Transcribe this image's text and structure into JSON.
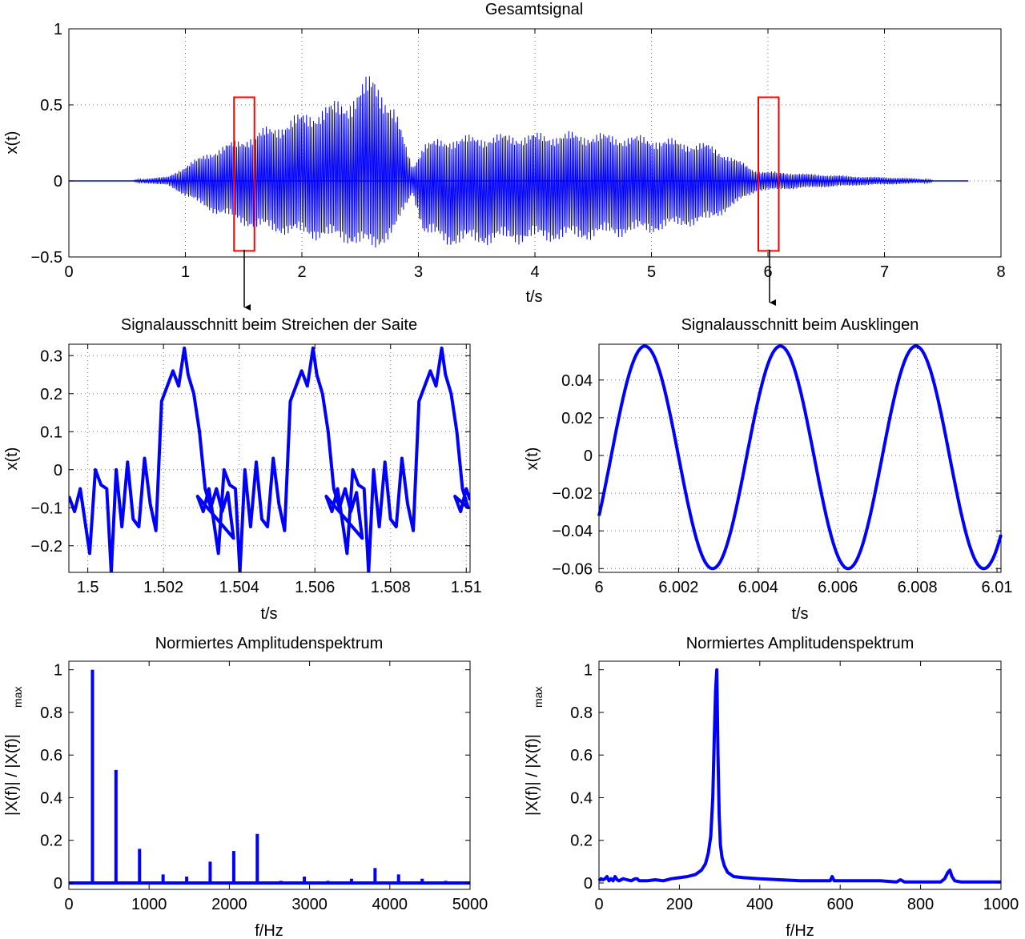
{
  "colors": {
    "signal": "#0000ff",
    "highlight": "#ff0000",
    "axes": "#000000",
    "background": "#ffffff"
  },
  "chart_data": [
    {
      "id": "overall",
      "type": "line",
      "title": "Gesamtsignal",
      "xlabel": "t/s",
      "ylabel": "x(t)",
      "xlim": [
        0,
        8
      ],
      "ylim": [
        -0.5,
        1
      ],
      "xticks": [
        "0",
        "1",
        "2",
        "3",
        "4",
        "5",
        "6",
        "7",
        "8"
      ],
      "yticks": [
        "1",
        "0.5",
        "0",
        "−0.5"
      ],
      "grid": true,
      "envelope": {
        "t": [
          0.0,
          0.55,
          0.58,
          0.85,
          1.2,
          1.6,
          2.0,
          2.4,
          2.62,
          2.8,
          2.95,
          3.05,
          3.3,
          3.8,
          4.4,
          5.0,
          5.5,
          5.9,
          6.3,
          6.8,
          7.2,
          7.4,
          7.42,
          7.72
        ],
        "upper": [
          0.0,
          0.0,
          0.01,
          0.03,
          0.2,
          0.33,
          0.46,
          0.57,
          0.74,
          0.48,
          0.1,
          0.26,
          0.3,
          0.32,
          0.33,
          0.3,
          0.25,
          0.07,
          0.05,
          0.03,
          0.02,
          0.01,
          0.0,
          0.0
        ],
        "lower": [
          0.0,
          0.0,
          -0.01,
          -0.03,
          -0.2,
          -0.33,
          -0.38,
          -0.42,
          -0.48,
          -0.35,
          -0.08,
          -0.38,
          -0.44,
          -0.42,
          -0.4,
          -0.35,
          -0.28,
          -0.07,
          -0.05,
          -0.03,
          -0.02,
          -0.01,
          0.0,
          0.0
        ]
      },
      "highlight_windows": [
        {
          "t": [
            1.5,
            1.51
          ],
          "x": [
            -0.46,
            0.55
          ]
        },
        {
          "t": [
            6.0,
            6.01
          ],
          "x": [
            -0.46,
            0.55
          ]
        }
      ]
    },
    {
      "id": "segment-bowing",
      "type": "line",
      "title": "Signalausschnitt beim Streichen der Saite",
      "xlabel": "t/s",
      "ylabel": "x(t)",
      "xlim": [
        1.4995,
        1.5101
      ],
      "ylim": [
        -0.27,
        0.33
      ],
      "xticks": [
        "1.5",
        "1.502",
        "1.504",
        "1.506",
        "1.508",
        "1.51"
      ],
      "xtick_values": [
        1.5,
        1.502,
        1.504,
        1.506,
        1.508,
        1.51
      ],
      "yticks": [
        "0.3",
        "0.2",
        "0.1",
        "0",
        "−0.1",
        "−0.2"
      ],
      "ytick_values": [
        0.3,
        0.2,
        0.1,
        0,
        -0.1,
        -0.2
      ],
      "grid": true,
      "period_s": 0.0034,
      "one_period": {
        "t": [
          1.4995,
          1.49965,
          1.4998,
          1.50005,
          1.5002,
          1.50035,
          1.5005,
          1.50062,
          1.50075,
          1.5009,
          1.50105,
          1.5012,
          1.50135,
          1.5015,
          1.50165,
          1.5018,
          1.50195,
          1.5021,
          1.50225,
          1.5024,
          1.50255,
          1.50265,
          1.5028,
          1.50295,
          1.5031,
          1.50325,
          1.5034,
          1.50355,
          1.5037,
          1.50385
        ],
        "x": [
          -0.07,
          -0.11,
          -0.05,
          -0.22,
          0.0,
          -0.04,
          -0.05,
          -0.27,
          0.0,
          -0.15,
          0.02,
          -0.13,
          -0.15,
          0.03,
          -0.09,
          -0.16,
          0.18,
          0.22,
          0.26,
          0.22,
          0.32,
          0.25,
          0.2,
          0.1,
          -0.05,
          -0.1,
          -0.05,
          -0.11,
          -0.06,
          -0.18
        ]
      }
    },
    {
      "id": "segment-decay",
      "type": "line",
      "title": "Signalausschnitt beim Ausklingen",
      "xlabel": "t/s",
      "ylabel": "x(t)",
      "xlim": [
        6.0,
        6.0101
      ],
      "ylim": [
        -0.062,
        0.059
      ],
      "xticks": [
        "6",
        "6.002",
        "6.004",
        "6.006",
        "6.008",
        "6.01"
      ],
      "xtick_values": [
        6.0,
        6.002,
        6.004,
        6.006,
        6.008,
        6.01
      ],
      "yticks": [
        "0.04",
        "0.02",
        "0",
        "−0.02",
        "−0.04",
        "−0.06"
      ],
      "ytick_values": [
        0.04,
        0.02,
        0,
        -0.02,
        -0.04,
        -0.06
      ],
      "grid": true,
      "sine": {
        "frequency_hz": 293.6,
        "amplitude": 0.059,
        "offset": -0.001,
        "start_value": -0.032,
        "rising_at_start": true,
        "t_start": 6.0,
        "t_end": 6.0101
      }
    },
    {
      "id": "spectrum-bowing",
      "type": "line",
      "title": "Normiertes Amplitudenspektrum",
      "xlabel": "f/Hz",
      "ylabel": "|X(f)| / |X(f)|",
      "ylabel_subscript": "max",
      "xlim": [
        0,
        5000
      ],
      "ylim": [
        -0.03,
        1.04
      ],
      "xticks": [
        "0",
        "1000",
        "2000",
        "3000",
        "4000",
        "5000"
      ],
      "xtick_values": [
        0,
        1000,
        2000,
        3000,
        4000,
        5000
      ],
      "yticks": [
        "1",
        "0.8",
        "0.6",
        "0.4",
        "0.2",
        "0"
      ],
      "ytick_values": [
        1,
        0.8,
        0.6,
        0.4,
        0.2,
        0
      ],
      "grid": false,
      "peaks": {
        "f": [
          294,
          587,
          881,
          1174,
          1468,
          1761,
          2055,
          2348,
          2642,
          2935,
          3229,
          3522,
          3816,
          4109,
          4403,
          4696
        ],
        "value": [
          1.0,
          0.53,
          0.16,
          0.04,
          0.03,
          0.1,
          0.15,
          0.23,
          0.01,
          0.03,
          0.01,
          0.02,
          0.07,
          0.04,
          0.02,
          0.01
        ]
      }
    },
    {
      "id": "spectrum-decay",
      "type": "line",
      "title": "Normiertes Amplitudenspektrum",
      "xlabel": "f/Hz",
      "ylabel": "|X(f)| / |X(f)|",
      "ylabel_subscript": "max",
      "xlim": [
        0,
        1000
      ],
      "ylim": [
        -0.03,
        1.04
      ],
      "xticks": [
        "0",
        "200",
        "400",
        "600",
        "800",
        "1000"
      ],
      "xtick_values": [
        0,
        200,
        400,
        600,
        800,
        1000
      ],
      "yticks": [
        "1",
        "0.8",
        "0.6",
        "0.4",
        "0.2",
        "0"
      ],
      "ytick_values": [
        1,
        0.8,
        0.6,
        0.4,
        0.2,
        0
      ],
      "grid": false,
      "curve": {
        "f": [
          0,
          5,
          10,
          15,
          20,
          25,
          30,
          35,
          40,
          45,
          50,
          60,
          70,
          80,
          90,
          95,
          100,
          120,
          140,
          160,
          180,
          200,
          220,
          240,
          255,
          265,
          272,
          278,
          283,
          287,
          290,
          293,
          296,
          299,
          302,
          306,
          312,
          320,
          335,
          360,
          400,
          450,
          500,
          550,
          575,
          580,
          585,
          600,
          650,
          700,
          740,
          750,
          760,
          800,
          850,
          860,
          868,
          873,
          878,
          885,
          900,
          950,
          1000
        ],
        "value": [
          0.01,
          0.02,
          0.015,
          0.02,
          0.03,
          0.01,
          0.02,
          0.01,
          0.03,
          0.015,
          0.01,
          0.02,
          0.015,
          0.01,
          0.02,
          0.02,
          0.01,
          0.01,
          0.015,
          0.01,
          0.02,
          0.025,
          0.03,
          0.04,
          0.06,
          0.09,
          0.14,
          0.22,
          0.4,
          0.7,
          0.9,
          1.0,
          0.6,
          0.32,
          0.18,
          0.12,
          0.08,
          0.05,
          0.03,
          0.025,
          0.02,
          0.015,
          0.01,
          0.01,
          0.01,
          0.03,
          0.01,
          0.01,
          0.01,
          0.01,
          0.005,
          0.015,
          0.005,
          0.005,
          0.005,
          0.02,
          0.05,
          0.06,
          0.03,
          0.01,
          0.005,
          0.005,
          0.005
        ]
      }
    }
  ]
}
